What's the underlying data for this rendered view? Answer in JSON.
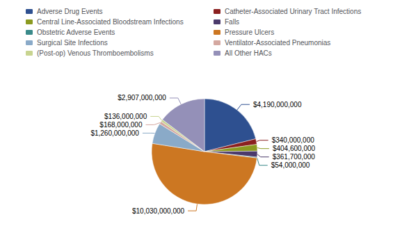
{
  "chart_data": {
    "type": "pie",
    "categories": [
      "Adverse Drug Events",
      "Catheter-Associated Urinary Tract Infections",
      "Central Line-Associated Bloodstream Infections",
      "Falls",
      "Obstetric Adverse Events",
      "Pressure Ulcers",
      "Surgical Site Infections",
      "Ventilator-Associated Pneumonias",
      "(Post-op) Venous Thromboembolisms",
      "All Other HACs"
    ],
    "values": [
      4190000000,
      340000000,
      404600000,
      361700000,
      54000000,
      10030000000,
      1260000000,
      168000000,
      136000000,
      2907000000
    ],
    "value_labels": [
      "$4,190,000,000",
      "$340,000,000",
      "$404,600,000",
      "$361,700,000",
      "$54,000,000",
      "$10,030,000,000",
      "$1,260,000,000",
      "$168,000,000",
      "$136,000,000",
      "$2,907,000,000"
    ],
    "colors": [
      "#2E5090",
      "#8B2020",
      "#8B9A20",
      "#4B3A6B",
      "#3A8A8A",
      "#CC7722",
      "#8AAAC8",
      "#D4A8A0",
      "#C8D490",
      "#9490B8"
    ],
    "data_labels": true,
    "legend": "top"
  }
}
